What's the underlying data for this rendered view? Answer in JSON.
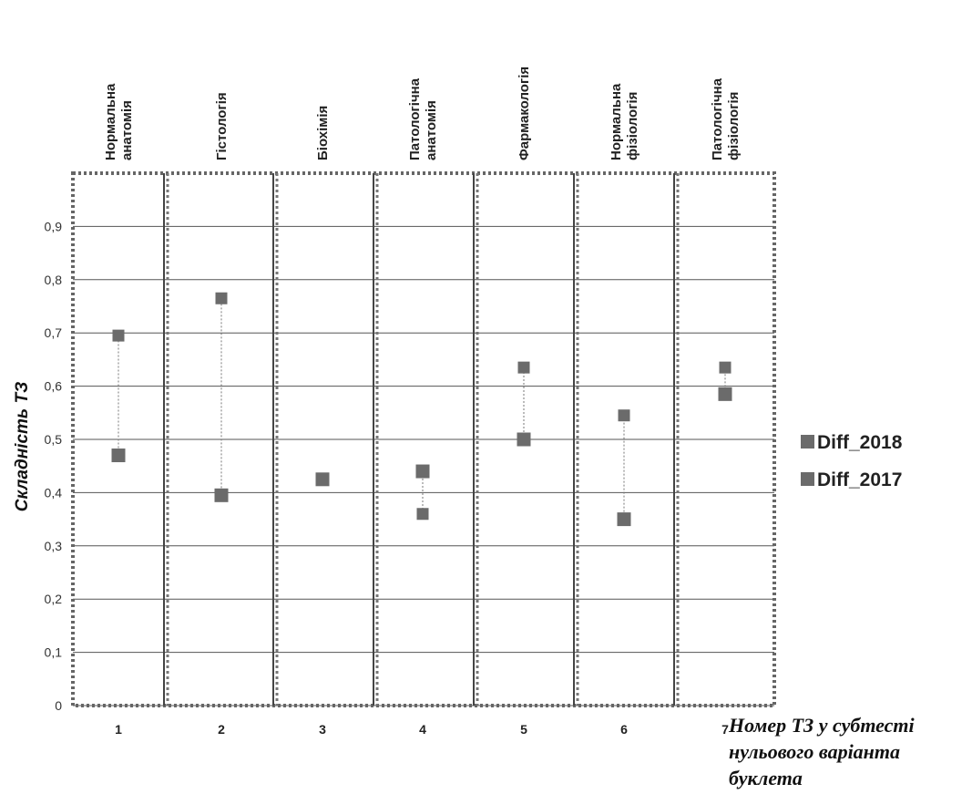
{
  "chart_data": {
    "type": "scatter",
    "ylabel": "Складність ТЗ",
    "xlabel": "Номер ТЗ у субтесті нульового варіанта буклета",
    "ylim": [
      0,
      1
    ],
    "yticks": [
      "0",
      "0,1",
      "0,2",
      "0,3",
      "0,4",
      "0,5",
      "0,6",
      "0,7",
      "0,8",
      "0,9"
    ],
    "x": [
      1,
      2,
      3,
      4,
      5,
      6,
      7
    ],
    "categories": [
      [
        "Нормальна",
        "анатомія"
      ],
      [
        "Гістологія"
      ],
      [
        "Біохімія"
      ],
      [
        "Патологічна",
        "анатомія"
      ],
      [
        "Фармакологія"
      ],
      [
        "Нормальна",
        "фізіологія"
      ],
      [
        "Патологічна",
        "фізіологія"
      ]
    ],
    "series": [
      {
        "name": "Diff_2018",
        "values": [
          0.47,
          0.395,
          0.425,
          0.44,
          0.5,
          0.35,
          0.585
        ]
      },
      {
        "name": "Diff_2017",
        "values": [
          0.695,
          0.765,
          0.425,
          0.36,
          0.635,
          0.545,
          0.635
        ]
      }
    ],
    "grid": true,
    "legend": "right",
    "marker_color": "#6b6b6b"
  }
}
